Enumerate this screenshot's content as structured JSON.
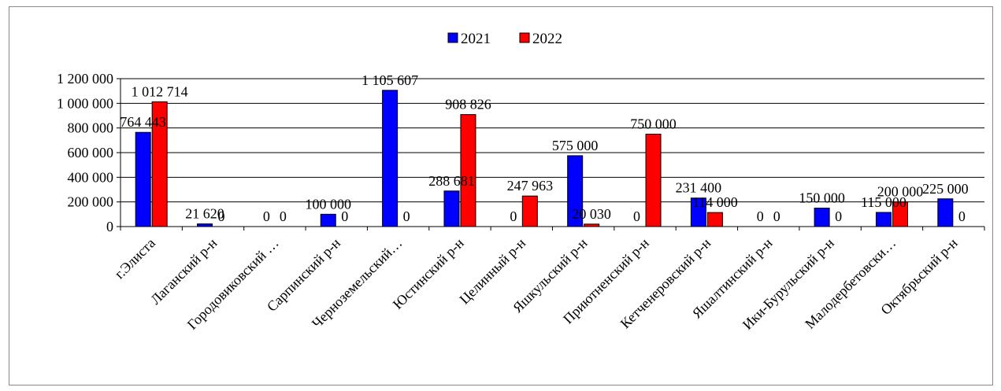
{
  "chart_data": {
    "type": "bar",
    "categories": [
      "г.Элиста",
      "Лаганский р-н",
      "Городовиковский …",
      "Сарпинский р-н",
      "Черноземельский…",
      "Юстинский р-н",
      "Целинный р-н",
      "Яшкульский р-н",
      "Приютненский р-н",
      "Кетченеровский р-н",
      "Яшалтинский р-н",
      "Ики-Бурульский р-н",
      "Малодербетовски…",
      "Октябрьский р-н"
    ],
    "series": [
      {
        "name": "2021",
        "color": "#0000ff",
        "values": [
          764443,
          21620,
          0,
          100000,
          1105607,
          288681,
          0,
          575000,
          0,
          231400,
          0,
          150000,
          115000,
          225000
        ],
        "labels": [
          "764 443",
          "21 620",
          "0",
          "100 000",
          "1 105 607",
          "288 681",
          "0",
          "575 000",
          "0",
          "231 400",
          "0",
          "150 000",
          "115 000",
          "225 000"
        ]
      },
      {
        "name": "2022",
        "color": "#ff0000",
        "values": [
          1012714,
          0,
          0,
          0,
          0,
          908826,
          247963,
          20030,
          750000,
          114000,
          0,
          0,
          200000,
          0
        ],
        "labels": [
          "1 012 714",
          "0",
          "0",
          "0",
          "0",
          "908 826",
          "247 963",
          "20 030",
          "750 000",
          "114 000",
          "0",
          "0",
          "200 000",
          "0"
        ]
      }
    ],
    "y_ticks": [
      "0",
      "200 000",
      "400 000",
      "600 000",
      "800 000",
      "1 000 000",
      "1 200 000"
    ],
    "ylim": [
      0,
      1200000
    ],
    "legend_position": "top",
    "grid": true,
    "title": "",
    "xlabel": "",
    "ylabel": ""
  }
}
